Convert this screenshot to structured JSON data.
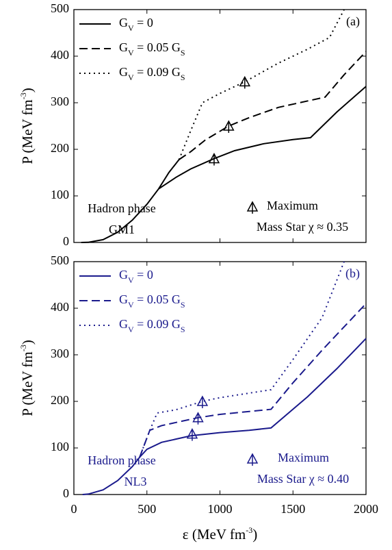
{
  "chart_data": [
    {
      "type": "line",
      "panel_label": "(a)",
      "y_label": "P (MeV fm-3)",
      "color": "#000000",
      "ylim": [
        0,
        500
      ],
      "yticks": [
        0,
        100,
        200,
        300,
        400,
        500
      ],
      "xlim": [
        0,
        2000
      ],
      "series": [
        {
          "name": "GV = 0",
          "linestyle": "solid",
          "x": [
            50,
            100,
            200,
            300,
            400,
            500,
            580,
            650,
            720,
            null,
            580,
            700,
            800,
            960,
            1100,
            1300,
            1500,
            1620,
            1800,
            2000
          ],
          "values": [
            0,
            0.5,
            6,
            22,
            48,
            82,
            115,
            150,
            178,
            null,
            115,
            140,
            158,
            180,
            197,
            212,
            221,
            225,
            280,
            335
          ]
        },
        {
          "name": "GV = 0.05 GS",
          "linestyle": "dashed",
          "x": [
            720,
            800,
            900,
            1060,
            1200,
            1400,
            1720,
            1850,
            2000
          ],
          "values": [
            178,
            195,
            220,
            250,
            268,
            290,
            312,
            360,
            410
          ]
        },
        {
          "name": "GV = 0.09 GS",
          "linestyle": "dotted",
          "x": [
            720,
            800,
            880,
            1000,
            1170,
            1400,
            1600,
            1750,
            1850
          ],
          "values": [
            178,
            240,
            300,
            320,
            345,
            385,
            415,
            440,
            500
          ]
        }
      ],
      "maxima": {
        "x": [
          960,
          1060,
          1170
        ],
        "values": [
          180,
          250,
          345
        ]
      },
      "annotations": [
        "Hadron phase",
        "GM1",
        "Maximum",
        "Mass Star χ ≈ 0.35"
      ]
    },
    {
      "type": "line",
      "panel_label": "(b)",
      "y_label": "P (MeV fm-3)",
      "x_label": "ε (MeV fm-3)",
      "color": "#1a1a8c",
      "ylim": [
        0,
        500
      ],
      "yticks": [
        0,
        100,
        200,
        300,
        400,
        500
      ],
      "xlim": [
        0,
        2000
      ],
      "xticks": [
        0,
        500,
        1000,
        1500,
        2000
      ],
      "series": [
        {
          "name": "GV = 0",
          "linestyle": "solid",
          "x": [
            60,
            100,
            200,
            300,
            400,
            450,
            500,
            600,
            800,
            1000,
            1200,
            1350,
            1600,
            1800,
            2000
          ],
          "values": [
            0,
            1,
            10,
            30,
            60,
            80,
            97,
            112,
            126,
            133,
            138,
            143,
            210,
            270,
            335
          ]
        },
        {
          "name": "GV = 0.05 GS",
          "linestyle": "dashed",
          "x": [
            450,
            520,
            600,
            850,
            1000,
            1350,
            1500,
            1700,
            2000
          ],
          "values": [
            80,
            138,
            148,
            165,
            172,
            183,
            240,
            310,
            410
          ]
        },
        {
          "name": "GV = 0.09 GS",
          "linestyle": "dotted",
          "x": [
            450,
            520,
            570,
            700,
            880,
            1000,
            1350,
            1500,
            1700,
            1850
          ],
          "values": [
            80,
            138,
            175,
            182,
            200,
            208,
            225,
            290,
            380,
            500
          ]
        }
      ],
      "maxima": {
        "x": [
          810,
          850,
          880
        ],
        "values": [
          130,
          165,
          200
        ]
      },
      "annotations": [
        "Hadron phase",
        "NL3",
        "Maximum",
        "Mass Star χ ≈ 0.40"
      ]
    }
  ]
}
